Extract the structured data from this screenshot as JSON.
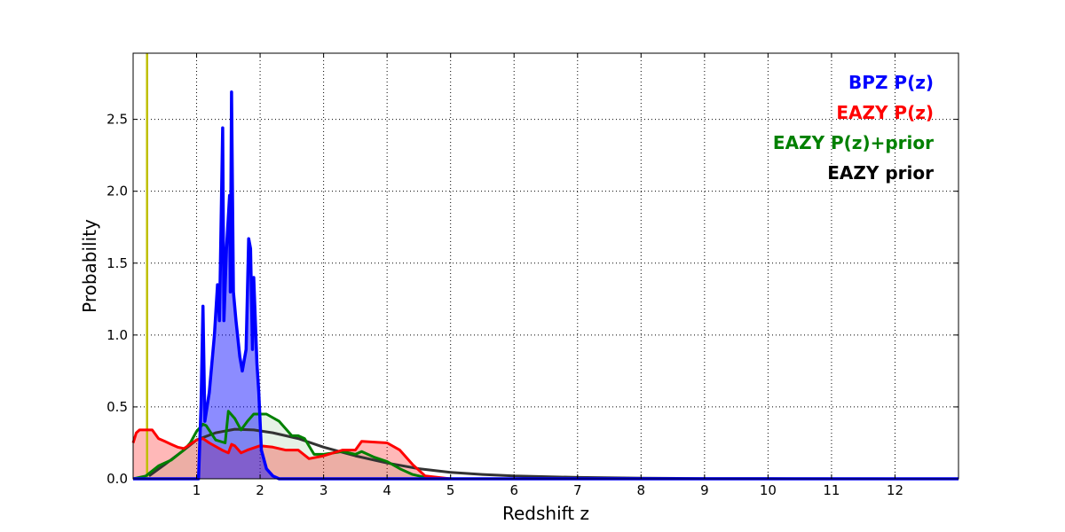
{
  "chart_data": {
    "type": "line",
    "title": "",
    "xlabel": "Redshift z",
    "ylabel": "Probability",
    "xlim": [
      0,
      13
    ],
    "ylim": [
      0,
      2.96
    ],
    "grid": true,
    "legend_placement": "top-right",
    "xticks": [
      1,
      2,
      3,
      4,
      5,
      6,
      7,
      8,
      9,
      10,
      11,
      12
    ],
    "xtick_labels": [
      "1",
      "2",
      "3",
      "4",
      "5",
      "6",
      "7",
      "8",
      "9",
      "10",
      "11",
      "12"
    ],
    "yticks": [
      0,
      0.5,
      1,
      1.5,
      2,
      2.5
    ],
    "ytick_labels": [
      "0.0",
      "0.5",
      "1.0",
      "1.5",
      "2.0",
      "2.5"
    ],
    "vline": {
      "x": 0.22,
      "color": "#bfbf00"
    },
    "series": [
      {
        "name": "EAZY prior",
        "color": "#333333",
        "fill": null,
        "x": [
          0.25,
          0.5,
          0.8,
          1.0,
          1.3,
          1.6,
          1.9,
          2.2,
          2.6,
          3.0,
          3.5,
          4.0,
          4.5,
          5.0,
          5.5,
          6.0,
          7.0,
          8.0,
          9.0,
          10.0,
          12.0,
          13.0
        ],
        "y": [
          0.02,
          0.1,
          0.2,
          0.27,
          0.32,
          0.345,
          0.34,
          0.32,
          0.28,
          0.22,
          0.16,
          0.11,
          0.07,
          0.045,
          0.03,
          0.02,
          0.01,
          0.005,
          0.002,
          0.001,
          0,
          0
        ]
      },
      {
        "name": "EAZY P(z)+prior",
        "color": "#008000",
        "fill": "rgba(0,128,0,0.1)",
        "x": [
          0,
          0.2,
          0.4,
          0.6,
          0.8,
          0.9,
          1.0,
          1.1,
          1.15,
          1.3,
          1.45,
          1.5,
          1.6,
          1.7,
          1.8,
          1.9,
          2.1,
          2.3,
          2.5,
          2.6,
          2.7,
          2.85,
          3.0,
          3.3,
          3.5,
          3.6,
          3.8,
          4.0,
          4.2,
          4.4,
          4.6,
          5.0,
          13.0
        ],
        "y": [
          0,
          0.02,
          0.09,
          0.13,
          0.2,
          0.25,
          0.33,
          0.38,
          0.37,
          0.27,
          0.25,
          0.47,
          0.42,
          0.34,
          0.4,
          0.45,
          0.45,
          0.4,
          0.3,
          0.3,
          0.28,
          0.17,
          0.17,
          0.19,
          0.17,
          0.19,
          0.15,
          0.12,
          0.07,
          0.03,
          0.01,
          0,
          0
        ]
      },
      {
        "name": "EAZY P(z)",
        "color": "#ff0000",
        "fill": "rgba(255,0,0,0.28)",
        "x": [
          0,
          0.05,
          0.1,
          0.3,
          0.4,
          0.5,
          0.6,
          0.7,
          0.8,
          0.9,
          1.0,
          1.1,
          1.2,
          1.4,
          1.5,
          1.55,
          1.6,
          1.7,
          1.8,
          2.0,
          2.2,
          2.4,
          2.6,
          2.77,
          3.0,
          3.3,
          3.5,
          3.6,
          4.0,
          4.2,
          4.4,
          4.6,
          5.0,
          13.0
        ],
        "y": [
          0.25,
          0.32,
          0.34,
          0.34,
          0.28,
          0.26,
          0.24,
          0.22,
          0.21,
          0.24,
          0.27,
          0.28,
          0.25,
          0.2,
          0.18,
          0.24,
          0.23,
          0.18,
          0.2,
          0.23,
          0.22,
          0.2,
          0.2,
          0.14,
          0.16,
          0.2,
          0.2,
          0.26,
          0.25,
          0.2,
          0.1,
          0.02,
          0,
          0
        ]
      },
      {
        "name": "BPZ P(z)",
        "color": "#0000ff",
        "fill": "rgba(0,0,255,0.45)",
        "x": [
          0,
          1.03,
          1.07,
          1.1,
          1.13,
          1.2,
          1.28,
          1.33,
          1.36,
          1.41,
          1.43,
          1.47,
          1.52,
          1.53,
          1.55,
          1.58,
          1.62,
          1.68,
          1.72,
          1.78,
          1.82,
          1.85,
          1.88,
          1.9,
          1.95,
          1.98,
          2.02,
          2.1,
          2.2,
          2.3,
          13.0
        ],
        "y": [
          0,
          0,
          0.5,
          1.2,
          0.4,
          0.6,
          1.0,
          1.35,
          1.1,
          2.44,
          1.1,
          1.6,
          1.97,
          1.3,
          2.69,
          1.3,
          1.1,
          0.85,
          0.75,
          0.9,
          1.67,
          1.6,
          0.9,
          1.4,
          0.8,
          0.6,
          0.2,
          0.07,
          0.02,
          0,
          0
        ]
      }
    ],
    "legend": [
      {
        "label": "BPZ P(z)",
        "color": "#0000ff"
      },
      {
        "label": "EAZY P(z)",
        "color": "#ff0000"
      },
      {
        "label": "EAZY P(z)+prior",
        "color": "#008000"
      },
      {
        "label": "EAZY prior",
        "color": "#000000"
      }
    ]
  }
}
